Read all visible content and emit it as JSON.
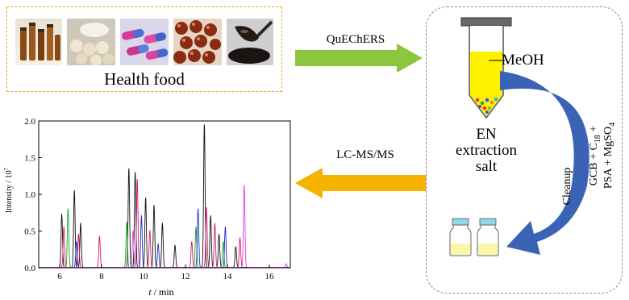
{
  "food_panel": {
    "label": "Health food",
    "image_icons": [
      "amber-vials-icon",
      "tablets-icon",
      "capsules-icon",
      "softgels-icon",
      "syrup-spoon-icon"
    ]
  },
  "arrows": {
    "quechers_label": "QuEChERS",
    "lcms_label": "LC-MS/MS",
    "cleanup_label": "Cleanup"
  },
  "lab_panel": {
    "solvent_label": "MeOH",
    "salt_label_1": "EN",
    "salt_label_2": "extraction",
    "salt_label_3": "salt",
    "sorbent_line_1": "GCB + C18 +",
    "sorbent_line_2": "PSA + MgSO4"
  },
  "chart_data": {
    "type": "line",
    "xlabel_var": "t",
    "xlabel_unit": " / min",
    "ylabel": "Intensity / 10",
    "ylabel_exp": "7",
    "xlim": [
      5,
      17
    ],
    "ylim": [
      0,
      2.0
    ],
    "x_ticks": [
      "6",
      "8",
      "10",
      "12",
      "14",
      "16"
    ],
    "y_ticks": [
      "0.0",
      "0.5",
      "1.0",
      "1.5",
      "2.0"
    ],
    "series": [
      {
        "color": "#111111",
        "peaks": [
          [
            6.1,
            0.72
          ],
          [
            6.7,
            1.05
          ],
          [
            7.0,
            0.6
          ],
          [
            9.3,
            1.35
          ],
          [
            9.6,
            1.3
          ],
          [
            10.1,
            0.95
          ],
          [
            10.5,
            0.85
          ],
          [
            10.9,
            0.6
          ],
          [
            11.5,
            0.3
          ],
          [
            12.9,
            1.95
          ],
          [
            13.2,
            0.7
          ],
          [
            13.6,
            0.45
          ],
          [
            14.4,
            0.28
          ]
        ]
      },
      {
        "color": "#1aa31a",
        "peaks": [
          [
            6.4,
            0.8
          ],
          [
            9.2,
            0.62
          ],
          [
            12.5,
            0.55
          ],
          [
            13.8,
            0.35
          ]
        ]
      },
      {
        "color": "#d0186e",
        "peaks": [
          [
            6.2,
            0.55
          ],
          [
            6.9,
            0.45
          ],
          [
            7.9,
            0.42
          ],
          [
            9.7,
            1.2
          ],
          [
            10.3,
            0.5
          ],
          [
            12.3,
            0.35
          ],
          [
            13.0,
            0.82
          ],
          [
            13.4,
            0.6
          ],
          [
            14.6,
            0.4
          ]
        ]
      },
      {
        "color": "#1a2fbf",
        "peaks": [
          [
            6.8,
            0.35
          ],
          [
            9.9,
            0.7
          ],
          [
            10.7,
            0.32
          ],
          [
            12.6,
            0.8
          ],
          [
            13.9,
            0.55
          ]
        ]
      },
      {
        "color": "#d040d8",
        "peaks": [
          [
            9.5,
            0.5
          ],
          [
            14.8,
            1.12
          ],
          [
            16.8,
            0.05
          ]
        ]
      }
    ]
  }
}
